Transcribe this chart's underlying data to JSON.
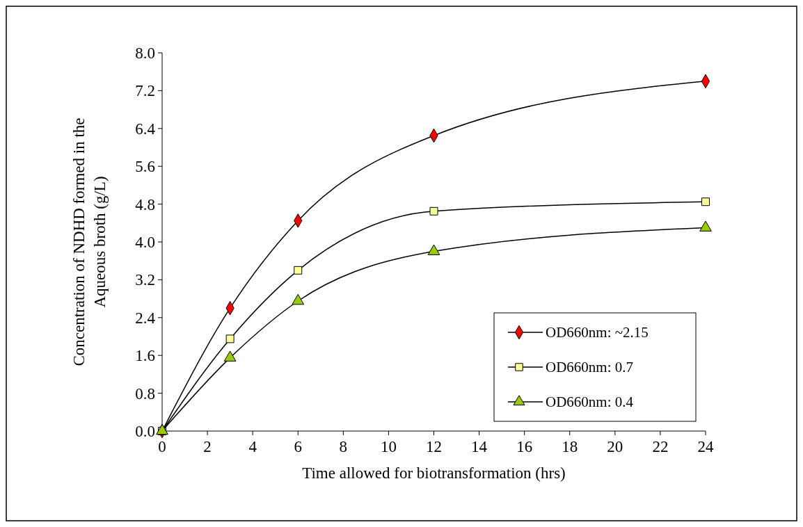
{
  "chart_data": {
    "type": "line",
    "xlabel": "Time allowed for biotransformation (hrs)",
    "ylabel": "Concentration of NDHD formed in the\nAqueous broth (g/L)",
    "x": [
      0,
      3,
      6,
      12,
      24
    ],
    "series": [
      {
        "name": "OD660nm: ~2.15",
        "color": "#ff0000",
        "marker": "diamond",
        "values": [
          0,
          2.6,
          4.45,
          6.25,
          7.4
        ]
      },
      {
        "name": "OD660nm: 0.7",
        "color": "#ffff99",
        "marker": "square",
        "values": [
          0,
          1.95,
          3.4,
          4.65,
          4.85
        ]
      },
      {
        "name": "OD660nm: 0.4",
        "color": "#99cc00",
        "marker": "triangle",
        "values": [
          0,
          1.55,
          2.75,
          3.8,
          4.3
        ]
      }
    ],
    "xlim": [
      0,
      24
    ],
    "xticks": [
      0,
      2,
      4,
      6,
      8,
      10,
      12,
      14,
      16,
      18,
      20,
      22,
      24
    ],
    "ylim": [
      0,
      8
    ],
    "yticks": [
      {
        "value": 0,
        "label": "0.0"
      },
      {
        "value": 0.8,
        "label": "0.8"
      },
      {
        "value": 1.6,
        "label": "1.6"
      },
      {
        "value": 2.4,
        "label": "2.4"
      },
      {
        "value": 3.2,
        "label": "3.2"
      },
      {
        "value": 4,
        "label": "4.0"
      },
      {
        "value": 4.8,
        "label": "4.8"
      },
      {
        "value": 5.6,
        "label": "5.6"
      },
      {
        "value": 6.4,
        "label": "6.4"
      },
      {
        "value": 7.2,
        "label": "7.2"
      },
      {
        "value": 8,
        "label": "8.0"
      }
    ],
    "legend": "bottom right",
    "line_style": "solid"
  }
}
